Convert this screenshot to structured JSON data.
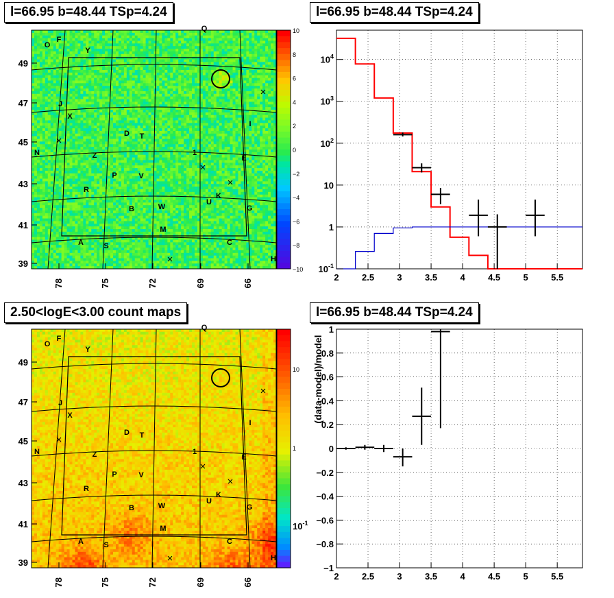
{
  "panels": {
    "top_left": {
      "title": "l=66.95 b=48.44 TSp=4.24"
    },
    "top_right": {
      "title": "l=66.95 b=48.44 TSp=4.24"
    },
    "bottom_left": {
      "title": "2.50<logE<3.00 count maps"
    },
    "bottom_right": {
      "title": "l=66.95 b=48.44 TSp=4.24"
    }
  },
  "colors": {
    "model_line": "#ff0000",
    "background_line": "#0000cc",
    "data_points": "#000000"
  },
  "chart_data": [
    {
      "id": "ts_map",
      "type": "heatmap",
      "title": "l=66.95 b=48.44 TSp=4.24",
      "xticks": [
        "78",
        "75",
        "72",
        "69",
        "66"
      ],
      "yticks": [
        "49",
        "47",
        "45",
        "43",
        "41",
        "39"
      ],
      "colorbar": {
        "ticks": [
          "10",
          "8",
          "6",
          "4",
          "2",
          "0",
          "−2",
          "−4",
          "−6",
          "−8",
          "−10"
        ],
        "range": [
          -10,
          10
        ]
      },
      "source_labels": [
        "O",
        "F",
        "Y",
        "Q",
        "J",
        "X",
        "D",
        "T",
        "I",
        "N",
        "Z",
        "E",
        "P",
        "V",
        "R",
        "U",
        "K",
        "B",
        "W",
        "G",
        "M",
        "A",
        "S",
        "C",
        "H",
        "1"
      ],
      "circle_label": "source-circle"
    },
    {
      "id": "spectrum",
      "type": "line",
      "title": "l=66.95 b=48.44 TSp=4.24",
      "xlim": [
        2,
        5.9
      ],
      "ylog": true,
      "ylim": [
        0.1,
        50000
      ],
      "xticks": [
        "2",
        "2.5",
        "3",
        "3.5",
        "4",
        "4.5",
        "5",
        "5.5"
      ],
      "yticks": [
        "10^-1",
        "1",
        "10",
        "10^2",
        "10^3",
        "10^4"
      ],
      "grid": true,
      "series": [
        {
          "kind": "step",
          "color": "#ff0000",
          "edges": [
            2.0,
            2.3,
            2.6,
            2.9,
            3.2,
            3.5,
            3.8,
            4.1,
            4.4,
            5.9
          ],
          "values": [
            32000,
            7800,
            1200,
            175,
            21,
            3.0,
            0.57,
            0.21,
            0.1
          ]
        },
        {
          "kind": "step",
          "color": "#0000cc",
          "edges": [
            2.0,
            2.3,
            2.6,
            2.9,
            3.2,
            3.5,
            5.9
          ],
          "values": [
            0.1,
            0.26,
            0.7,
            0.95,
            1.0,
            1.0
          ]
        },
        {
          "kind": "points",
          "color": "#000000",
          "points": [
            {
              "x": 3.05,
              "y": 160,
              "xerr": 0.15,
              "ylo": 145,
              "yhi": 180
            },
            {
              "x": 3.35,
              "y": 26,
              "xerr": 0.15,
              "ylo": 20,
              "yhi": 33
            },
            {
              "x": 3.65,
              "y": 6,
              "xerr": 0.15,
              "ylo": 3.5,
              "yhi": 8.5
            },
            {
              "x": 4.25,
              "y": 1.9,
              "xerr": 0.15,
              "ylo": 0.6,
              "yhi": 4.5
            },
            {
              "x": 4.55,
              "y": 1.0,
              "xerr": 0.15,
              "ylo": 0.1,
              "yhi": 2.0
            },
            {
              "x": 5.15,
              "y": 1.9,
              "xerr": 0.15,
              "ylo": 0.6,
              "yhi": 4.5
            }
          ]
        }
      ]
    },
    {
      "id": "count_map",
      "type": "heatmap",
      "title": "2.50<logE<3.00 count maps",
      "xticks": [
        "78",
        "75",
        "72",
        "69",
        "66"
      ],
      "yticks": [
        "49",
        "47",
        "45",
        "43",
        "41",
        "39"
      ],
      "colorbar": {
        "ticks": [
          "10",
          "1",
          "10^-1"
        ],
        "log": true
      },
      "source_labels": [
        "O",
        "F",
        "Y",
        "Q",
        "J",
        "X",
        "D",
        "T",
        "I",
        "N",
        "Z",
        "E",
        "P",
        "V",
        "R",
        "U",
        "K",
        "B",
        "W",
        "G",
        "M",
        "A",
        "S",
        "C",
        "H",
        "1"
      ]
    },
    {
      "id": "residuals",
      "type": "scatter",
      "title": "l=66.95 b=48.44 TSp=4.24",
      "ylabel": "(data-model)/model",
      "xlim": [
        2,
        5.9
      ],
      "ylim": [
        -1,
        1
      ],
      "xticks": [
        "2",
        "2.5",
        "3",
        "3.5",
        "4",
        "4.5",
        "5",
        "5.5"
      ],
      "yticks": [
        "1",
        "0.8",
        "0.6",
        "0.4",
        "0.2",
        "0",
        "−0.2",
        "−0.4",
        "−0.6",
        "−0.8",
        "−1"
      ],
      "grid": true,
      "points": [
        {
          "x": 2.15,
          "y": 0.0,
          "xerr": 0.15,
          "ylo": -0.01,
          "yhi": 0.01
        },
        {
          "x": 2.45,
          "y": 0.01,
          "xerr": 0.15,
          "ylo": -0.01,
          "yhi": 0.03
        },
        {
          "x": 2.75,
          "y": 0.0,
          "xerr": 0.15,
          "ylo": -0.03,
          "yhi": 0.03
        },
        {
          "x": 3.05,
          "y": -0.07,
          "xerr": 0.15,
          "ylo": -0.15,
          "yhi": 0.0
        },
        {
          "x": 3.35,
          "y": 0.27,
          "xerr": 0.15,
          "ylo": 0.03,
          "yhi": 0.51
        },
        {
          "x": 3.65,
          "y": 0.98,
          "xerr": 0.15,
          "ylo": 0.17,
          "yhi": 1.0
        }
      ]
    }
  ]
}
